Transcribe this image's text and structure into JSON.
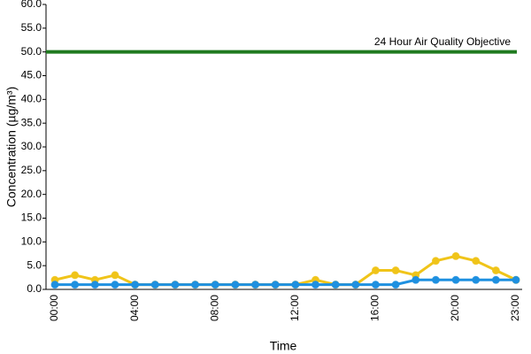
{
  "chart_data": {
    "type": "line",
    "y_label": "Concentration (µg/m³)",
    "x_label": "Time",
    "categories": [
      "00:00",
      null,
      null,
      null,
      "04:00",
      null,
      null,
      null,
      "08:00",
      null,
      null,
      null,
      "12:00",
      null,
      null,
      null,
      "16:00",
      null,
      null,
      null,
      "20:00",
      null,
      null,
      "23:00"
    ],
    "series": [
      {
        "color": "#f0c419",
        "values": [
          2,
          3,
          2,
          3,
          1,
          1,
          1,
          1,
          1,
          1,
          1,
          1,
          1,
          2,
          1,
          1,
          4,
          4,
          3,
          6,
          7,
          6,
          4,
          2
        ]
      },
      {
        "color": "#1e90e0",
        "values": [
          1,
          1,
          1,
          1,
          1,
          1,
          1,
          1,
          1,
          1,
          1,
          1,
          1,
          1,
          1,
          1,
          1,
          1,
          2,
          2,
          2,
          2,
          2,
          2
        ]
      }
    ],
    "objective": {
      "value": 50,
      "label": "24 Hour Air Quality Objective",
      "color": "#1f7a1f"
    },
    "ylim": [
      0,
      60
    ],
    "yticks": [
      {
        "value": 0,
        "label": "0.0"
      },
      {
        "value": 5,
        "label": "5.0"
      },
      {
        "value": 10,
        "label": "10.0"
      },
      {
        "value": 15,
        "label": "15.0"
      },
      {
        "value": 20,
        "label": "20.0"
      },
      {
        "value": 25,
        "label": "25.0"
      },
      {
        "value": 30,
        "label": "30.0"
      },
      {
        "value": 35,
        "label": "35.0"
      },
      {
        "value": 40,
        "label": "40.0"
      },
      {
        "value": 45,
        "label": "45.0"
      },
      {
        "value": 50,
        "label": "50.0"
      },
      {
        "value": 55,
        "label": "55.0"
      },
      {
        "value": 60,
        "label": "60.0"
      }
    ]
  }
}
